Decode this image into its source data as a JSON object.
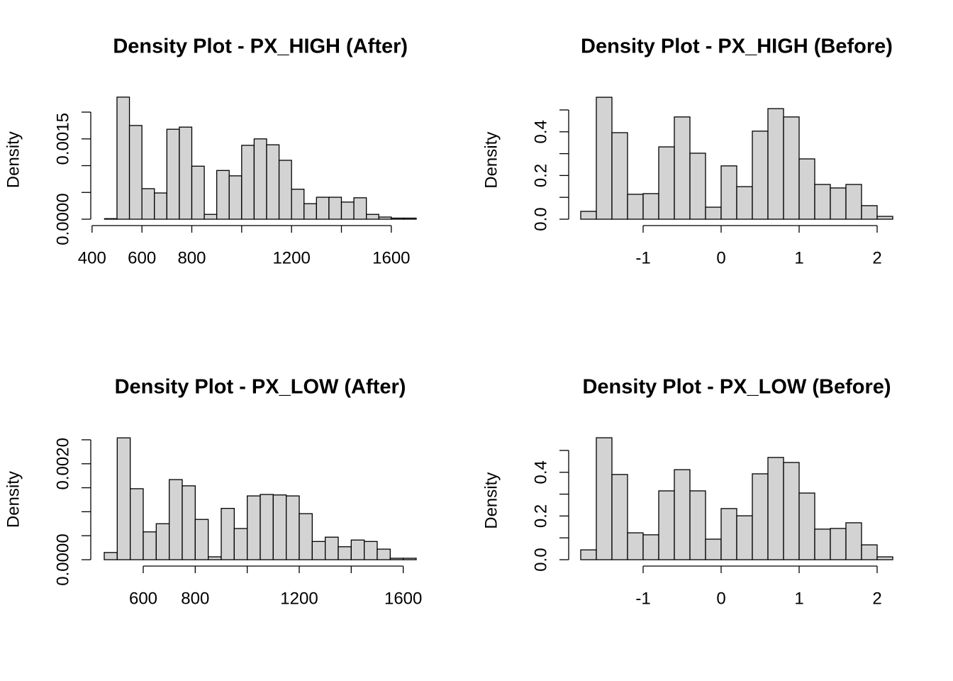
{
  "chart_data": [
    {
      "type": "histogram",
      "title": "Density Plot -  PX_HIGH (After)",
      "ylabel": "Density",
      "color": "#d3d3d3",
      "bins": [
        450,
        500,
        550,
        600,
        650,
        700,
        750,
        800,
        850,
        900,
        950,
        1000,
        1050,
        1100,
        1150,
        1200,
        1250,
        1300,
        1350,
        1400,
        1450,
        1500,
        1550,
        1600,
        1650,
        1700
      ],
      "values": [
        1e-05,
        0.00228,
        0.00175,
        0.00057,
        0.00049,
        0.00168,
        0.00172,
        0.00099,
        9e-05,
        0.00091,
        0.00081,
        0.00138,
        0.0015,
        0.00139,
        0.0011,
        0.00056,
        0.00029,
        0.00041,
        0.00041,
        0.00032,
        0.0004,
        9e-05,
        4e-05,
        2e-05,
        2e-05
      ],
      "xlim": [
        450,
        1700
      ],
      "xticks": [
        400,
        600,
        800,
        {
          "value": 1000,
          "label": null
        },
        1200,
        {
          "value": 1400,
          "label": null
        },
        1600
      ],
      "ylim": [
        0,
        0.0023
      ],
      "yticks": [
        {
          "value": 0,
          "label": "0.0000"
        },
        {
          "value": 0.0005,
          "label": null
        },
        {
          "value": 0.001,
          "label": null
        },
        {
          "value": 0.0015,
          "label": "0.0015"
        },
        {
          "value": 0.002,
          "label": null
        }
      ]
    },
    {
      "type": "histogram",
      "title": "Density Plot -  PX_HIGH (Before)",
      "ylabel": "Density",
      "color": "#d3d3d3",
      "bins": [
        -1.8,
        -1.6,
        -1.4,
        -1.2,
        -1.0,
        -0.8,
        -0.6,
        -0.4,
        -0.2,
        0,
        0.2,
        0.4,
        0.6,
        0.8,
        1.0,
        1.2,
        1.4,
        1.6,
        1.8,
        2.0,
        2.2
      ],
      "values": [
        0.036,
        0.558,
        0.396,
        0.114,
        0.117,
        0.331,
        0.468,
        0.302,
        0.055,
        0.244,
        0.149,
        0.403,
        0.506,
        0.468,
        0.276,
        0.159,
        0.143,
        0.159,
        0.062,
        0.013
      ],
      "xlim": [
        -1.8,
        2.2
      ],
      "xticks": [
        -1,
        0,
        1,
        2
      ],
      "ylim": [
        0,
        0.56
      ],
      "yticks": [
        {
          "value": 0,
          "label": "0.0"
        },
        {
          "value": 0.1,
          "label": null
        },
        0.2,
        {
          "value": 0.3,
          "label": null
        },
        0.4,
        {
          "value": 0.5,
          "label": null
        }
      ]
    },
    {
      "type": "histogram",
      "title": "Density Plot -  PX_LOW (After)",
      "ylabel": "Density",
      "color": "#d3d3d3",
      "bins": [
        450,
        500,
        550,
        600,
        650,
        700,
        750,
        800,
        850,
        900,
        950,
        1000,
        1050,
        1100,
        1150,
        1200,
        1250,
        1300,
        1350,
        1400,
        1450,
        1500,
        1550,
        1600,
        1650
      ],
      "values": [
        0.00015,
        0.00254,
        0.00148,
        0.00058,
        0.00075,
        0.00167,
        0.00154,
        0.00084,
        6e-05,
        0.00107,
        0.00065,
        0.00133,
        0.00136,
        0.00135,
        0.00133,
        0.00096,
        0.00038,
        0.00047,
        0.00027,
        0.00041,
        0.00038,
        0.00022,
        3e-05,
        3e-05
      ],
      "xlim": [
        450,
        1650
      ],
      "xticks": [
        600,
        800,
        {
          "value": 1000,
          "label": null
        },
        1200,
        {
          "value": 1400,
          "label": null
        },
        1600
      ],
      "ylim": [
        0,
        0.0026
      ],
      "yticks": [
        {
          "value": 0,
          "label": "0.0000"
        },
        {
          "value": 0.0005,
          "label": null
        },
        {
          "value": 0.001,
          "label": null
        },
        {
          "value": 0.0015,
          "label": null
        },
        {
          "value": 0.002,
          "label": "0.0020"
        },
        {
          "value": 0.0025,
          "label": null
        }
      ]
    },
    {
      "type": "histogram",
      "title": "Density Plot -  PX_LOW (Before)",
      "ylabel": "Density",
      "color": "#d3d3d3",
      "bins": [
        -1.8,
        -1.6,
        -1.4,
        -1.2,
        -1.0,
        -0.8,
        -0.6,
        -0.4,
        -0.2,
        0,
        0.2,
        0.4,
        0.6,
        0.8,
        1.0,
        1.2,
        1.4,
        1.6,
        1.8,
        2.0,
        2.2
      ],
      "values": [
        0.045,
        0.558,
        0.39,
        0.123,
        0.114,
        0.315,
        0.412,
        0.315,
        0.094,
        0.234,
        0.201,
        0.393,
        0.468,
        0.445,
        0.305,
        0.14,
        0.143,
        0.169,
        0.068,
        0.013
      ],
      "xlim": [
        -1.8,
        2.2
      ],
      "xticks": [
        -1,
        0,
        1,
        2
      ],
      "ylim": [
        0,
        0.56
      ],
      "yticks": [
        {
          "value": 0,
          "label": "0.0"
        },
        {
          "value": 0.1,
          "label": null
        },
        0.2,
        {
          "value": 0.3,
          "label": null
        },
        0.4,
        {
          "value": 0.5,
          "label": null
        }
      ]
    }
  ]
}
